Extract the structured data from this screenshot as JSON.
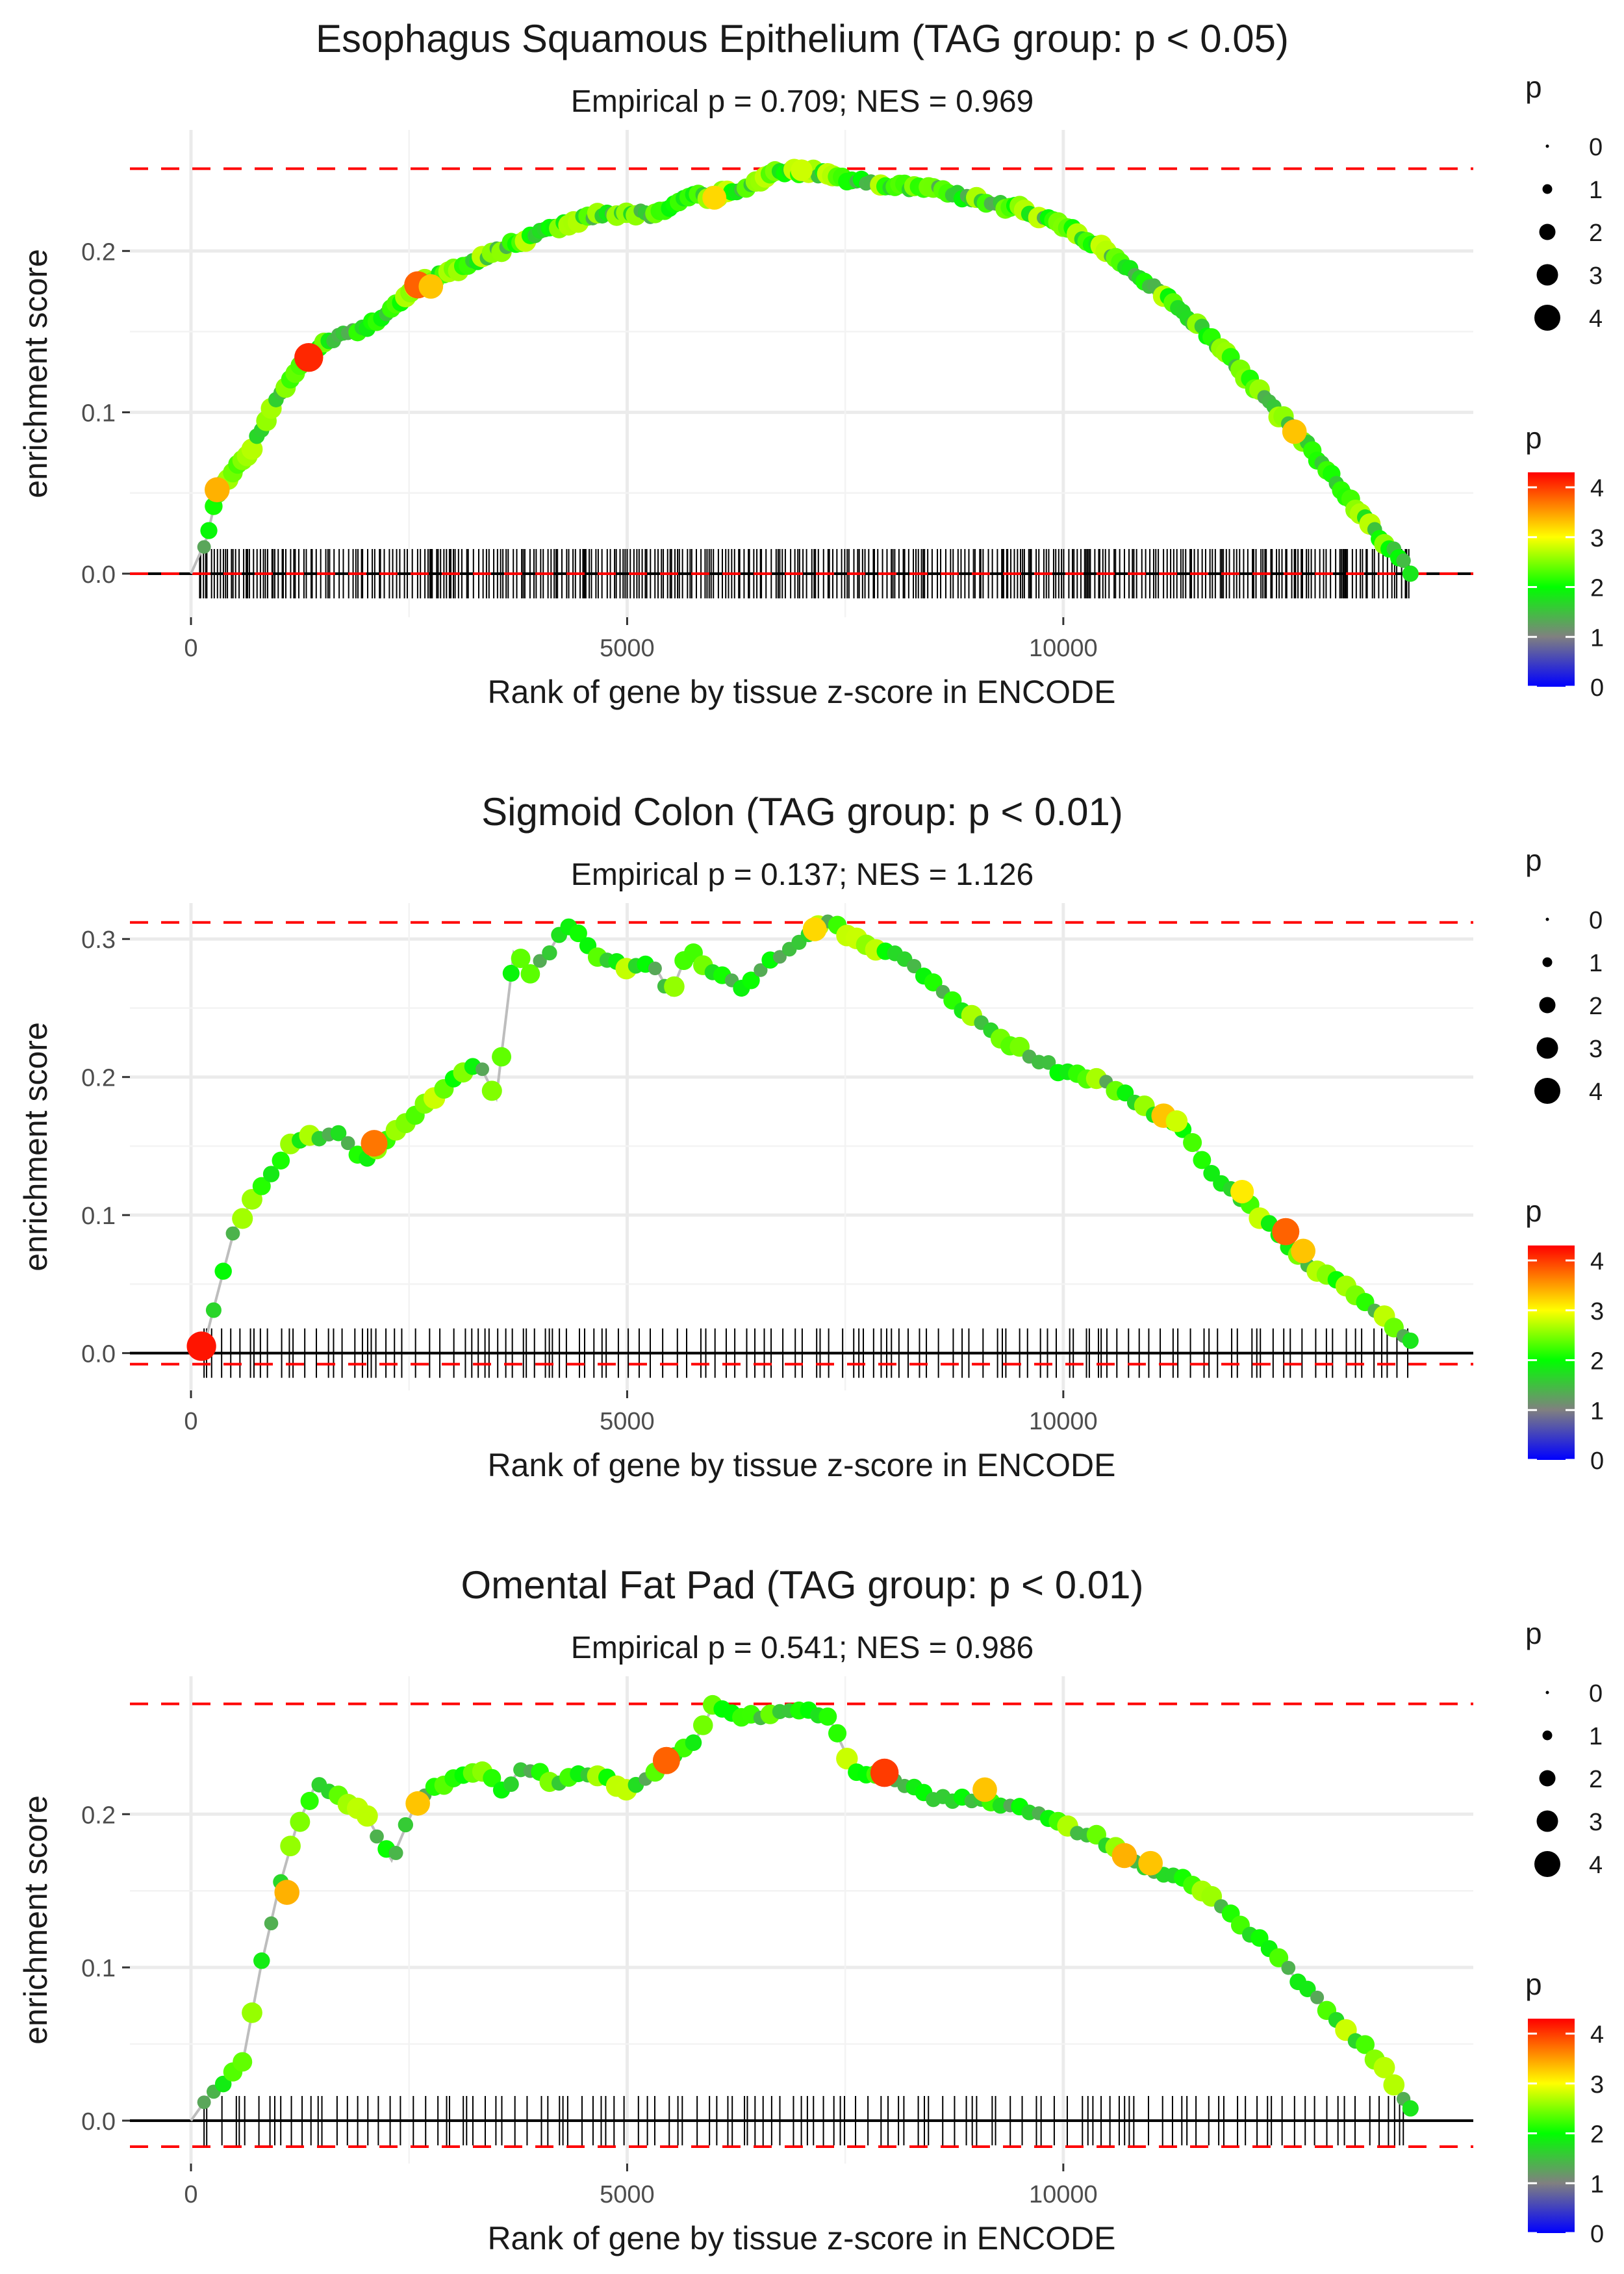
{
  "figure": {
    "background": "#ffffff",
    "gridline_color": "#ebebeb",
    "text_color": "#1a1a1a",
    "axis_text_color": "#4d4d4d"
  },
  "chart_data": [
    {
      "type": "line",
      "title": "Esophagus Squamous Epithelium (TAG group: p < 0.05)",
      "subtitle": "Empirical p = 0.709; NES = 0.969",
      "xlabel": "Rank of gene by tissue z-score in ENCODE",
      "ylabel": "enrichment score",
      "xlim": [
        -700,
        14700
      ],
      "ylim": [
        -0.027,
        0.275
      ],
      "x_ticks": [
        0,
        5000,
        10000
      ],
      "x_tick_labels": [
        "0",
        "5000",
        "10000"
      ],
      "y_ticks": [
        0,
        0.1,
        0.2
      ],
      "y_tick_labels": [
        "0.0",
        "0.1",
        "0.2"
      ],
      "es_max": 0.251,
      "es_min": 0,
      "es_curve": [
        [
          0,
          0
        ],
        [
          100,
          0.012
        ],
        [
          180,
          0.022
        ],
        [
          300,
          0.05
        ],
        [
          500,
          0.066
        ],
        [
          700,
          0.078
        ],
        [
          1000,
          0.11
        ],
        [
          1300,
          0.133
        ],
        [
          1600,
          0.145
        ],
        [
          2000,
          0.152
        ],
        [
          2300,
          0.163
        ],
        [
          2600,
          0.179
        ],
        [
          3000,
          0.188
        ],
        [
          3500,
          0.2
        ],
        [
          4000,
          0.212
        ],
        [
          4500,
          0.22
        ],
        [
          5000,
          0.225
        ],
        [
          5300,
          0.222
        ],
        [
          5700,
          0.233
        ],
        [
          6000,
          0.234
        ],
        [
          6400,
          0.241
        ],
        [
          6800,
          0.25
        ],
        [
          7200,
          0.248
        ],
        [
          7600,
          0.244
        ],
        [
          8000,
          0.24
        ],
        [
          8500,
          0.239
        ],
        [
          9000,
          0.232
        ],
        [
          9500,
          0.226
        ],
        [
          10000,
          0.216
        ],
        [
          10400,
          0.203
        ],
        [
          10800,
          0.188
        ],
        [
          11200,
          0.17
        ],
        [
          11600,
          0.151
        ],
        [
          12000,
          0.128
        ],
        [
          12400,
          0.103
        ],
        [
          12800,
          0.08
        ],
        [
          13200,
          0.051
        ],
        [
          13600,
          0.024
        ],
        [
          13900,
          0.008
        ],
        [
          14000,
          0
        ]
      ],
      "points_step": 55,
      "highlight_points": [
        {
          "x": 300,
          "y": 0.052,
          "p": 3.4
        },
        {
          "x": 1350,
          "y": 0.134,
          "p": 4.1
        },
        {
          "x": 2600,
          "y": 0.179,
          "p": 3.8
        },
        {
          "x": 2750,
          "y": 0.178,
          "p": 3.3
        },
        {
          "x": 6000,
          "y": 0.233,
          "p": 3.2
        },
        {
          "x": 7000,
          "y": 0.25,
          "p": 2.8
        },
        {
          "x": 12650,
          "y": 0.088,
          "p": 3.3
        }
      ],
      "ticks_step": 34,
      "tick_range": [
        100,
        14000
      ],
      "size_legend": {
        "title": "p",
        "labels": [
          "0",
          "1",
          "2",
          "3",
          "4"
        ]
      },
      "color_legend": {
        "title": "p",
        "labels": [
          "4",
          "3",
          "2",
          "1",
          "0"
        ]
      }
    },
    {
      "type": "line",
      "title": "Sigmoid Colon (TAG group: p < 0.01)",
      "subtitle": "Empirical p = 0.137; NES = 1.126",
      "xlabel": "Rank of gene by tissue z-score in ENCODE",
      "ylabel": "enrichment score",
      "xlim": [
        -700,
        14700
      ],
      "ylim": [
        -0.027,
        0.326
      ],
      "x_ticks": [
        0,
        5000,
        10000
      ],
      "x_tick_labels": [
        "0",
        "5000",
        "10000"
      ],
      "y_ticks": [
        0,
        0.1,
        0.2,
        0.3
      ],
      "y_tick_labels": [
        "0.0",
        "0.1",
        "0.2",
        "0.3"
      ],
      "es_max": 0.312,
      "es_min": -0.008,
      "es_curve": [
        [
          0,
          0
        ],
        [
          150,
          0.005
        ],
        [
          250,
          0.03
        ],
        [
          500,
          0.09
        ],
        [
          800,
          0.12
        ],
        [
          1200,
          0.155
        ],
        [
          1700,
          0.158
        ],
        [
          2000,
          0.14
        ],
        [
          2300,
          0.16
        ],
        [
          2700,
          0.18
        ],
        [
          3000,
          0.2
        ],
        [
          3300,
          0.21
        ],
        [
          3500,
          0.185
        ],
        [
          3700,
          0.29
        ],
        [
          3900,
          0.275
        ],
        [
          4100,
          0.29
        ],
        [
          4300,
          0.312
        ],
        [
          4700,
          0.285
        ],
        [
          5000,
          0.28
        ],
        [
          5300,
          0.282
        ],
        [
          5500,
          0.26
        ],
        [
          5700,
          0.292
        ],
        [
          6000,
          0.275
        ],
        [
          6300,
          0.265
        ],
        [
          6600,
          0.282
        ],
        [
          7000,
          0.3
        ],
        [
          7300,
          0.312
        ],
        [
          7700,
          0.298
        ],
        [
          8000,
          0.29
        ],
        [
          8300,
          0.28
        ],
        [
          8600,
          0.262
        ],
        [
          9000,
          0.24
        ],
        [
          9500,
          0.22
        ],
        [
          10000,
          0.203
        ],
        [
          10500,
          0.195
        ],
        [
          11000,
          0.175
        ],
        [
          11400,
          0.16
        ],
        [
          11700,
          0.13
        ],
        [
          12000,
          0.115
        ],
        [
          12400,
          0.09
        ],
        [
          12800,
          0.065
        ],
        [
          13200,
          0.05
        ],
        [
          13600,
          0.03
        ],
        [
          14000,
          0.009
        ]
      ],
      "points_step": 110,
      "highlight_points": [
        {
          "x": 120,
          "y": 0.005,
          "p": 4.2
        },
        {
          "x": 2100,
          "y": 0.152,
          "p": 3.7
        },
        {
          "x": 7150,
          "y": 0.307,
          "p": 3.2
        },
        {
          "x": 11150,
          "y": 0.172,
          "p": 3.3
        },
        {
          "x": 11300,
          "y": 0.168,
          "p": 2.8
        },
        {
          "x": 12050,
          "y": 0.117,
          "p": 3.1
        },
        {
          "x": 12550,
          "y": 0.088,
          "p": 3.8
        },
        {
          "x": 12750,
          "y": 0.074,
          "p": 3.3
        }
      ],
      "ticks_step": 95,
      "tick_range": [
        150,
        14000
      ],
      "size_legend": {
        "title": "p",
        "labels": [
          "0",
          "1",
          "2",
          "3",
          "4"
        ]
      },
      "color_legend": {
        "title": "p",
        "labels": [
          "4",
          "3",
          "2",
          "1",
          "0"
        ]
      }
    },
    {
      "type": "line",
      "title": "Omental Fat Pad (TAG group: p < 0.01)",
      "subtitle": "Empirical p = 0.541; NES = 0.986",
      "xlabel": "Rank of gene by tissue z-score in ENCODE",
      "ylabel": "enrichment score",
      "xlim": [
        -700,
        14700
      ],
      "ylim": [
        -0.028,
        0.29
      ],
      "x_ticks": [
        0,
        5000,
        10000
      ],
      "x_tick_labels": [
        "0",
        "5000",
        "10000"
      ],
      "y_ticks": [
        0,
        0.1,
        0.2
      ],
      "y_tick_labels": [
        "0.0",
        "0.1",
        "0.2"
      ],
      "es_max": 0.272,
      "es_min": -0.017,
      "es_curve": [
        [
          0,
          0
        ],
        [
          250,
          0.02
        ],
        [
          400,
          0.025
        ],
        [
          600,
          0.04
        ],
        [
          800,
          0.1
        ],
        [
          1000,
          0.15
        ],
        [
          1200,
          0.19
        ],
        [
          1450,
          0.222
        ],
        [
          1700,
          0.21
        ],
        [
          2000,
          0.2
        ],
        [
          2300,
          0.17
        ],
        [
          2600,
          0.21
        ],
        [
          2900,
          0.22
        ],
        [
          3300,
          0.23
        ],
        [
          3600,
          0.215
        ],
        [
          3800,
          0.232
        ],
        [
          4200,
          0.22
        ],
        [
          4600,
          0.228
        ],
        [
          5000,
          0.215
        ],
        [
          5400,
          0.232
        ],
        [
          5600,
          0.24
        ],
        [
          5800,
          0.25
        ],
        [
          6000,
          0.272
        ],
        [
          6300,
          0.262
        ],
        [
          6700,
          0.266
        ],
        [
          7000,
          0.268
        ],
        [
          7300,
          0.265
        ],
        [
          7600,
          0.228
        ],
        [
          8000,
          0.225
        ],
        [
          8500,
          0.21
        ],
        [
          9000,
          0.21
        ],
        [
          9500,
          0.205
        ],
        [
          10000,
          0.192
        ],
        [
          10400,
          0.185
        ],
        [
          10700,
          0.173
        ],
        [
          11000,
          0.165
        ],
        [
          11400,
          0.158
        ],
        [
          11800,
          0.14
        ],
        [
          12300,
          0.115
        ],
        [
          12800,
          0.085
        ],
        [
          13200,
          0.062
        ],
        [
          13600,
          0.04
        ],
        [
          14000,
          0.008
        ]
      ],
      "points_step": 110,
      "highlight_points": [
        {
          "x": 1100,
          "y": 0.149,
          "p": 3.4
        },
        {
          "x": 2600,
          "y": 0.207,
          "p": 3.3
        },
        {
          "x": 5450,
          "y": 0.235,
          "p": 3.8
        },
        {
          "x": 7950,
          "y": 0.227,
          "p": 4.0
        },
        {
          "x": 9100,
          "y": 0.216,
          "p": 3.3
        },
        {
          "x": 10700,
          "y": 0.173,
          "p": 3.4
        },
        {
          "x": 11000,
          "y": 0.168,
          "p": 3.3
        }
      ],
      "ticks_step": 100,
      "tick_range": [
        150,
        13900
      ],
      "size_legend": {
        "title": "p",
        "labels": [
          "0",
          "1",
          "2",
          "3",
          "4"
        ]
      },
      "color_legend": {
        "title": "p",
        "labels": [
          "4",
          "3",
          "2",
          "1",
          "0"
        ]
      }
    }
  ]
}
